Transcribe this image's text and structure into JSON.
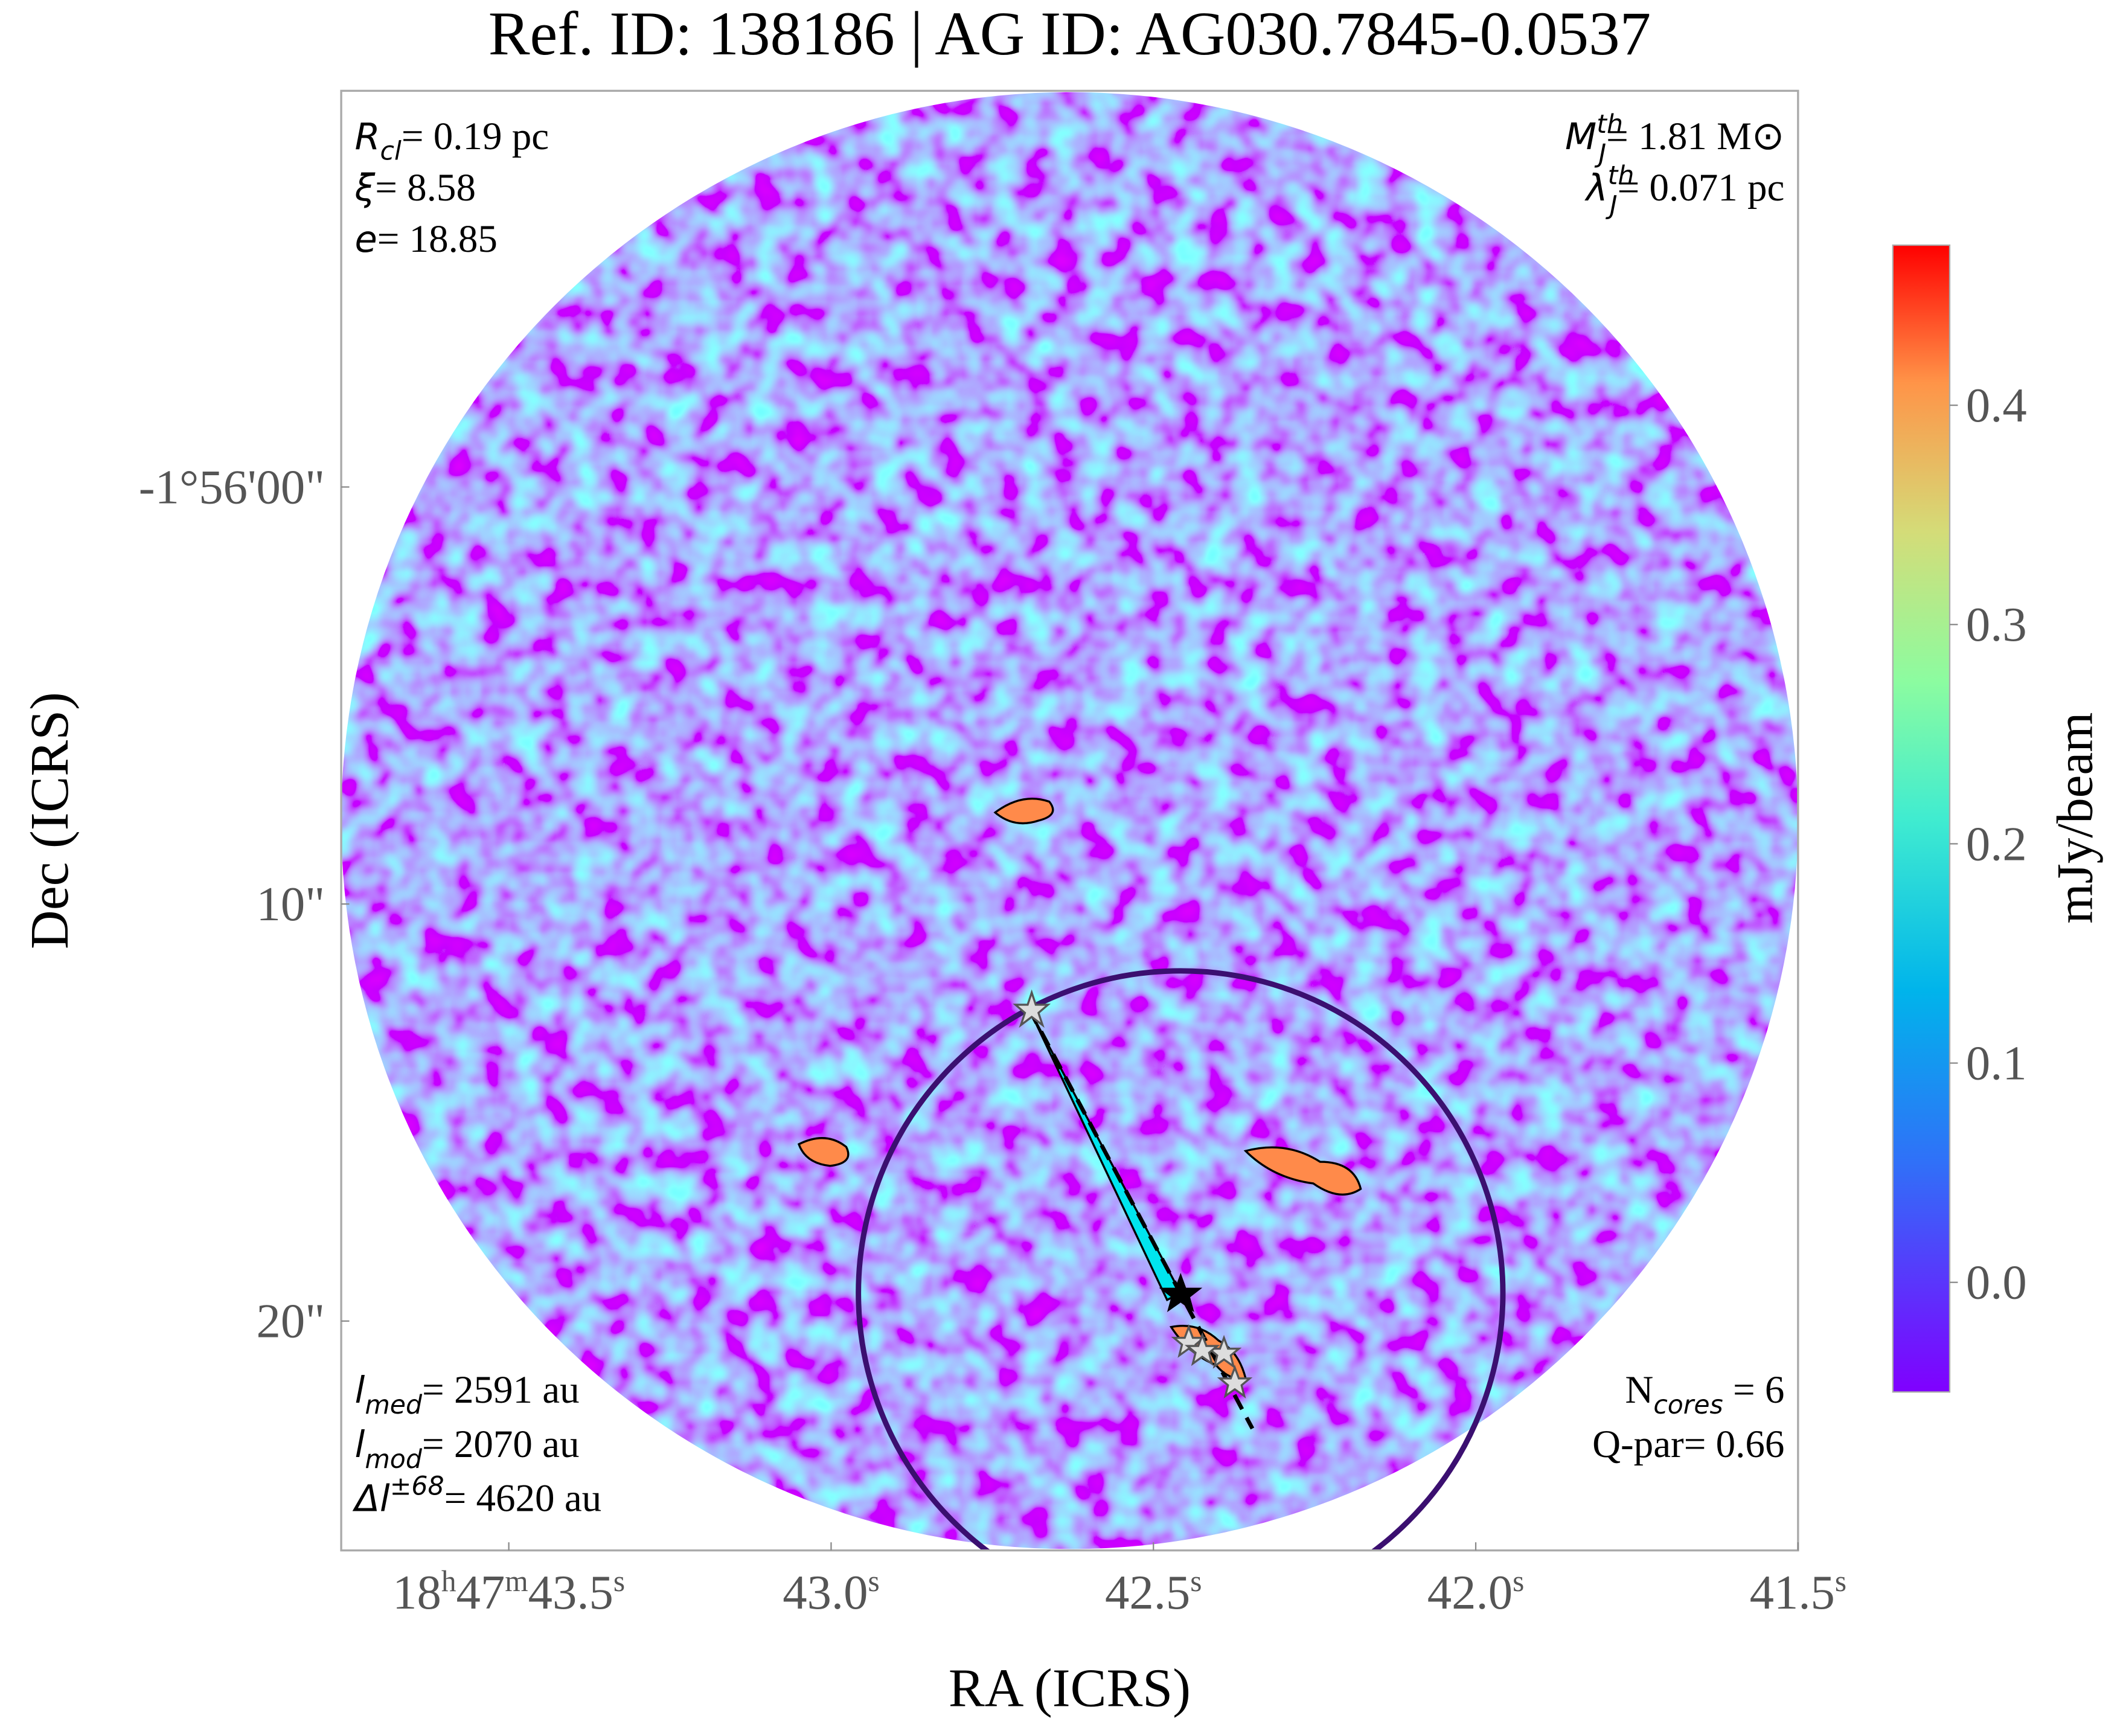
{
  "chart_data": {
    "type": "image",
    "title": "Ref. ID: 138186 | AG ID: AG030.7845-0.0537",
    "x_label": "RA (ICRS)",
    "y_label": "Dec (ICRS)",
    "xlim": [
      43.76,
      41.5
    ],
    "xticks": [
      {
        "value": 43.5,
        "label": "18h47m43.5s"
      },
      {
        "value": 43.0,
        "label": "43.0s"
      },
      {
        "value": 42.5,
        "label": "42.5s"
      },
      {
        "value": 42.0,
        "label": "42.0s"
      },
      {
        "value": 41.5,
        "label": "41.5s"
      }
    ],
    "ylim": [
      -9.5,
      25.5
    ],
    "yticks": [
      {
        "value": 0,
        "label": "-1°56'00\""
      },
      {
        "value": 10,
        "label": "10\""
      },
      {
        "value": 20,
        "label": "20\""
      }
    ],
    "colorbar": {
      "label": "mJy/beam",
      "lim": [
        -0.05,
        0.473
      ],
      "ticks": [
        {
          "value": 0,
          "label": "0.0"
        },
        0.1,
        0.2,
        0.3,
        0.4
      ]
    },
    "annotations": {
      "top_left": [
        {
          "symbol": "R",
          "sub": "cl",
          "text": "= 0.19 pc"
        },
        {
          "symbol": "ξ",
          "text": "= 8.58"
        },
        {
          "symbol": "e",
          "text": "= 18.85"
        }
      ],
      "top_right": [
        {
          "symbol": "M",
          "sup": "th",
          "sub": "J",
          "text": "= 1.81 M⊙"
        },
        {
          "symbol": "λ",
          "sup": "th",
          "sub": "J",
          "text": "= 0.071 pc"
        }
      ],
      "bottom_left": [
        {
          "symbol": "l",
          "sub": "med",
          "text": "= 2591 au"
        },
        {
          "symbol": "l",
          "sub": "mod",
          "text": "= 2070 au"
        },
        {
          "symbol": "Δl",
          "sup": "±68",
          "text": "= 4620 au"
        }
      ],
      "bottom_right": [
        {
          "symbol": "N",
          "sub": "cores",
          "text": " = 6"
        },
        {
          "symbol": "Q-par",
          "text": "= 0.66"
        }
      ]
    }
  }
}
